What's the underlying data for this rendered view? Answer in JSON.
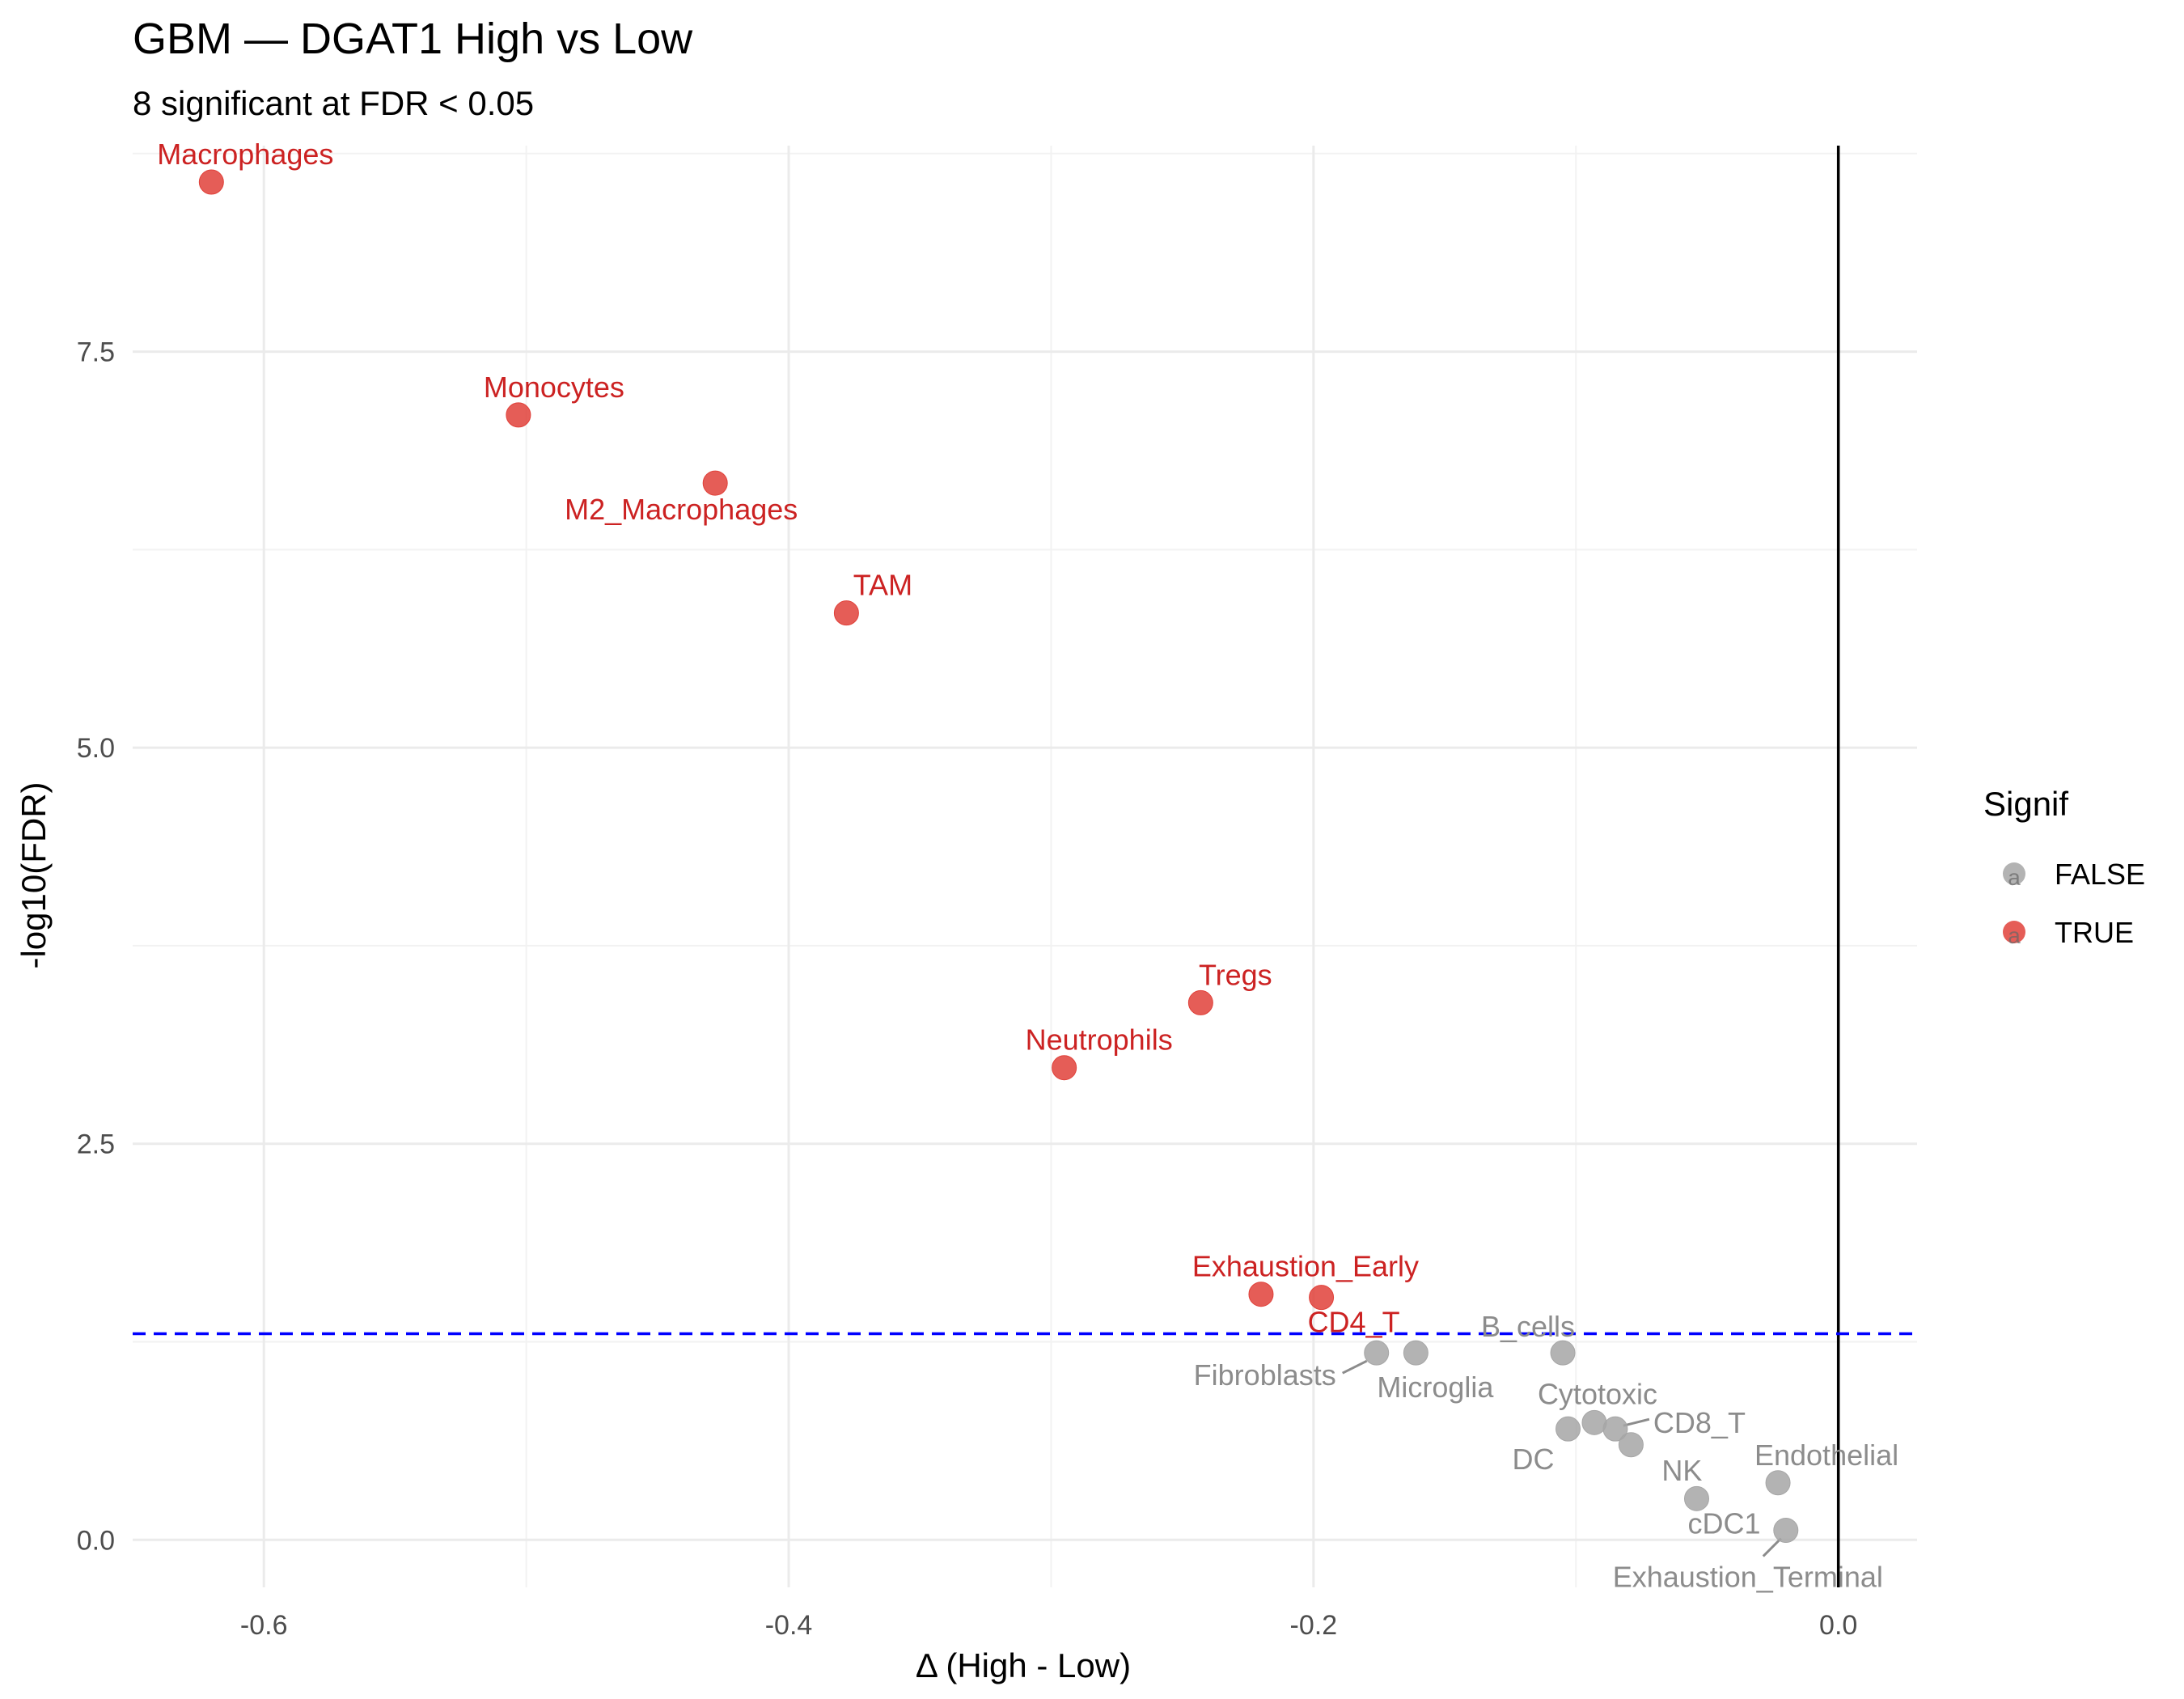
{
  "chart_data": {
    "type": "scatter",
    "title": "GBM — DGAT1 High vs Low",
    "subtitle": "8 significant at FDR < 0.05",
    "xlabel": "Δ (High - Low)",
    "ylabel": "-log10(FDR)",
    "xlim": [
      -0.65,
      0.03
    ],
    "ylim": [
      -0.3,
      8.8
    ],
    "x_ticks": [
      -0.6,
      -0.4,
      -0.2,
      0.0
    ],
    "x_tick_labels": [
      "-0.6",
      "-0.4",
      "-0.2",
      "0.0"
    ],
    "y_ticks": [
      0.0,
      2.5,
      5.0,
      7.5
    ],
    "y_tick_labels": [
      "0.0",
      "2.5",
      "5.0",
      "7.5"
    ],
    "grid": true,
    "threshold_line": {
      "y": 1.301,
      "style": "dashed",
      "color": "#0000ff"
    },
    "zero_line": {
      "x": 0.0,
      "color": "#000000"
    },
    "legend": {
      "title": "Signif",
      "position": "right",
      "entries": [
        {
          "label": "FALSE",
          "color": "#a6a6a6"
        },
        {
          "label": "TRUE",
          "color": "#e0413a"
        }
      ]
    },
    "colors": {
      "TRUE": "#e0413a",
      "FALSE": "#a6a6a6",
      "TRUE_text": "#cc2222",
      "FALSE_text": "#8c8c8c"
    },
    "points": [
      {
        "label": "Macrophages",
        "x": -0.62,
        "y": 8.57,
        "signif": true
      },
      {
        "label": "Monocytes",
        "x": -0.503,
        "y": 7.1,
        "signif": true
      },
      {
        "label": "M2_Macrophages",
        "x": -0.428,
        "y": 6.67,
        "signif": true
      },
      {
        "label": "TAM",
        "x": -0.378,
        "y": 5.85,
        "signif": true
      },
      {
        "label": "Tregs",
        "x": -0.243,
        "y": 3.39,
        "signif": true
      },
      {
        "label": "Neutrophils",
        "x": -0.295,
        "y": 2.98,
        "signif": true
      },
      {
        "label": "Exhaustion_Early",
        "x": -0.22,
        "y": 1.55,
        "signif": true
      },
      {
        "label": "CD4_T",
        "x": -0.197,
        "y": 1.53,
        "signif": true
      },
      {
        "label": "Fibroblasts",
        "x": -0.176,
        "y": 1.18,
        "signif": false
      },
      {
        "label": "Microglia",
        "x": -0.161,
        "y": 1.18,
        "signif": false
      },
      {
        "label": "B_cells",
        "x": -0.105,
        "y": 1.18,
        "signif": false
      },
      {
        "label": "Cytotoxic",
        "x": -0.093,
        "y": 0.74,
        "signif": false
      },
      {
        "label": "DC",
        "x": -0.103,
        "y": 0.7,
        "signif": false
      },
      {
        "label": "CD8_T",
        "x": -0.085,
        "y": 0.7,
        "signif": false
      },
      {
        "label": "NK",
        "x": -0.079,
        "y": 0.6,
        "signif": false
      },
      {
        "label": "Endothelial",
        "x": -0.023,
        "y": 0.36,
        "signif": false
      },
      {
        "label": "cDC1",
        "x": -0.054,
        "y": 0.26,
        "signif": false
      },
      {
        "label": "Exhaustion_Terminal",
        "x": -0.02,
        "y": 0.06,
        "signif": false
      }
    ]
  }
}
